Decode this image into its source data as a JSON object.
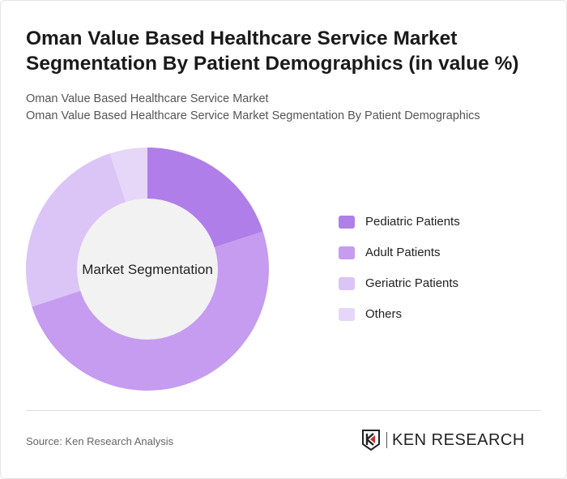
{
  "title": "Oman Value Based Healthcare Service Market Segmentation By Patient Demographics (in value %)",
  "subtitle1": "Oman Value Based Healthcare Service Market",
  "subtitle2": "Oman Value Based Healthcare Service Market Segmentation By Patient Demographics",
  "source": "Source: Ken Research Analysis",
  "logo_text": "KEN RESEARCH",
  "chart_data": {
    "type": "pie",
    "variant": "donut",
    "center_label": "Market Segmentation",
    "categories": [
      "Pediatric Patients",
      "Adult Patients",
      "Geriatric Patients",
      "Others"
    ],
    "values": [
      20,
      50,
      25,
      5
    ],
    "colors": [
      "#b07ee8",
      "#c59cf0",
      "#dbc4f6",
      "#e6d6f8"
    ],
    "legend_position": "right"
  }
}
